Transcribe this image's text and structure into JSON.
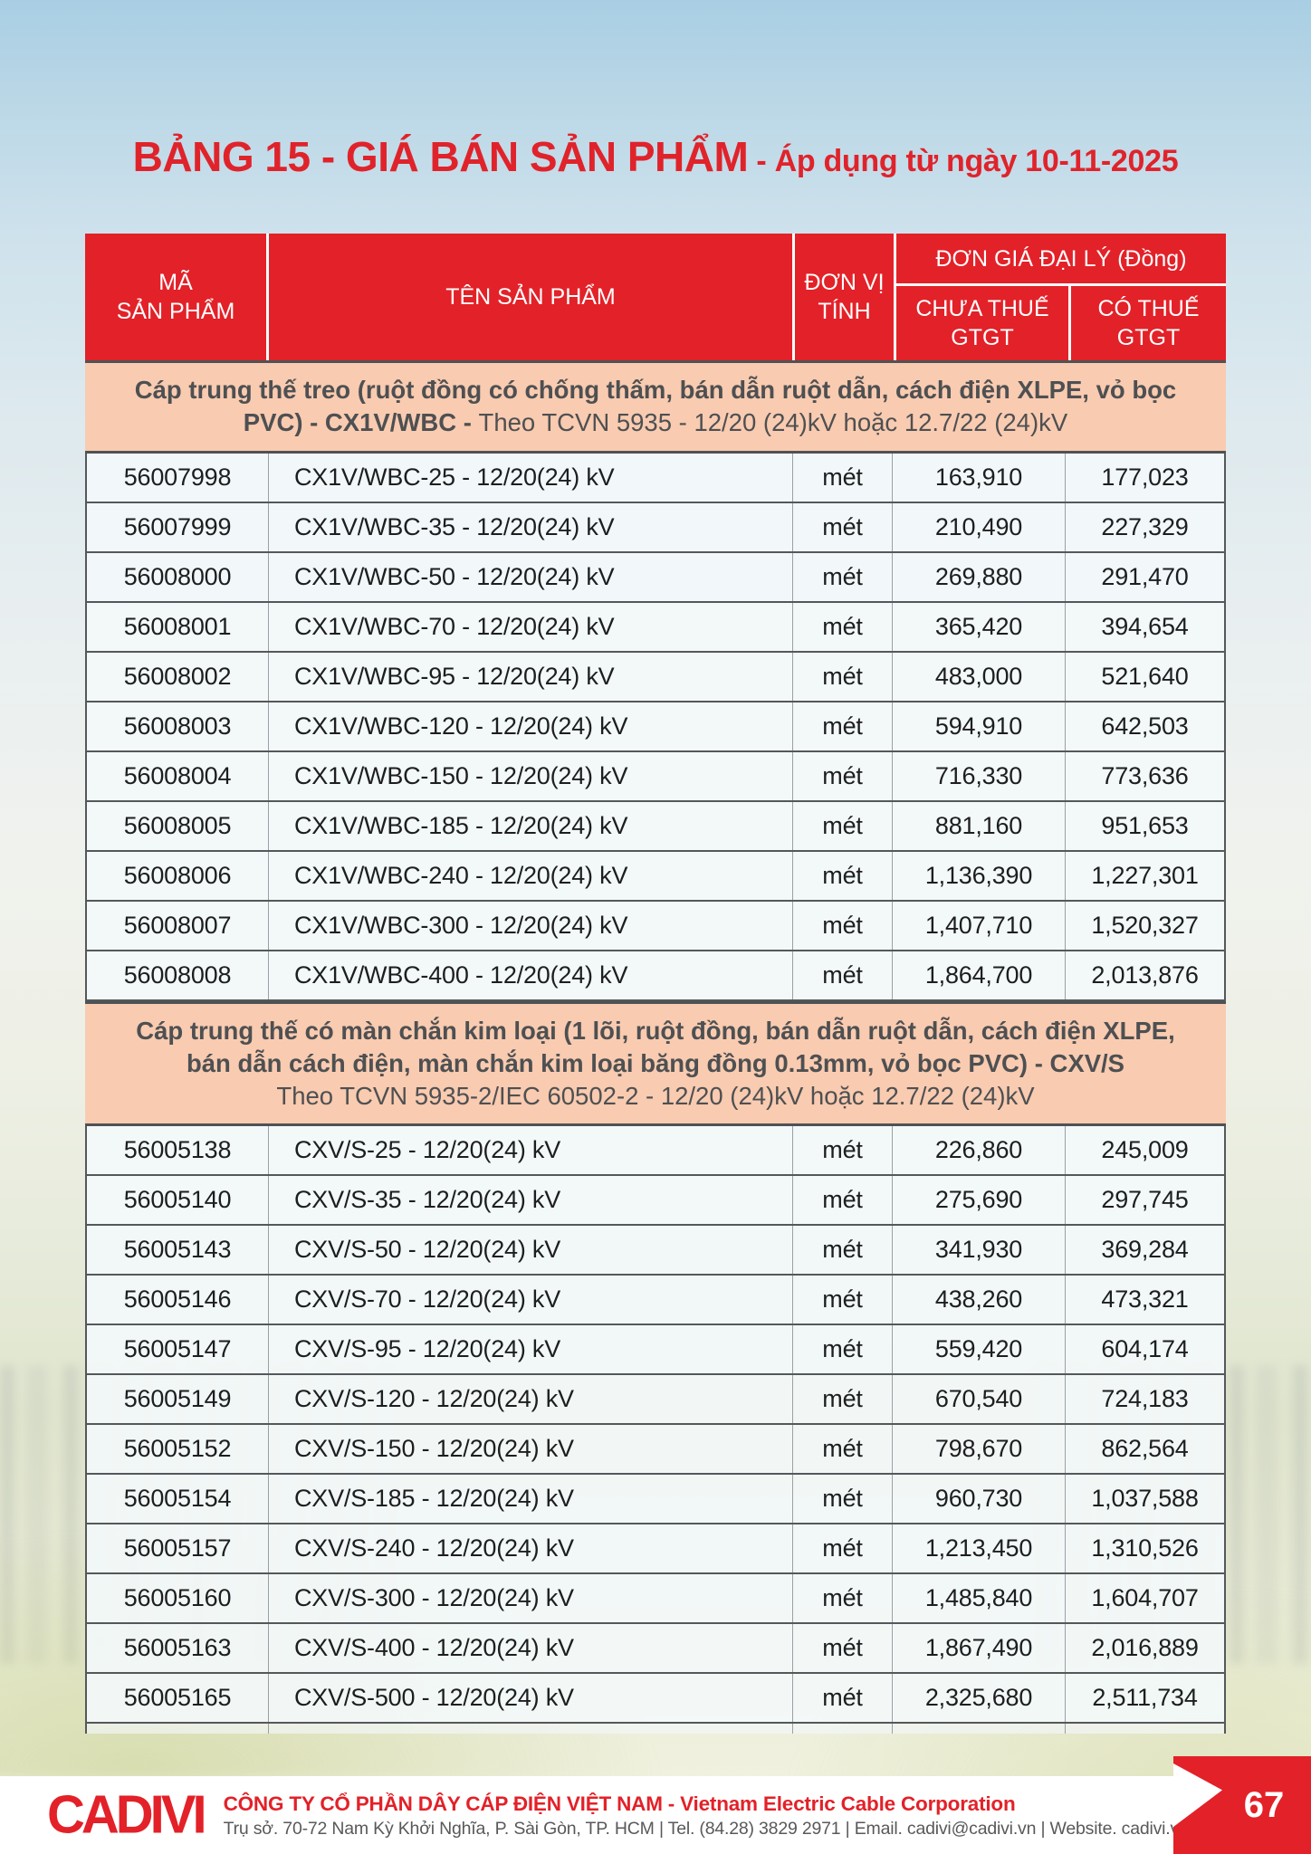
{
  "title": {
    "main": "BẢNG 15 - GIÁ BÁN SẢN PHẨM",
    "suffix": " - Áp dụng từ ngày 10-11-2025"
  },
  "table": {
    "headers": {
      "code": "MÃ\nSẢN PHẨM",
      "name": "TÊN SẢN PHẨM",
      "unit": "ĐƠN VỊ\nTÍNH",
      "price_group": "ĐƠN GIÁ ĐẠI LÝ (Đồng)",
      "price_ex": "CHƯA THUẾ\nGTGT",
      "price_inc": "CÓ THUẾ\nGTGT"
    },
    "sections": [
      {
        "heading_bold": "Cáp trung thế treo (ruột đồng có chống thấm, bán dẫn ruột dẫn, cách điện XLPE, vỏ bọc PVC) - CX1V/WBC -",
        "heading_normal": "Theo TCVN 5935 - 12/20 (24)kV hoặc 12.7/22 (24)kV",
        "rows": [
          {
            "code": "56007998",
            "name": "CX1V/WBC-25 - 12/20(24) kV",
            "unit": "mét",
            "price_ex": "163,910",
            "price_inc": "177,023"
          },
          {
            "code": "56007999",
            "name": "CX1V/WBC-35 - 12/20(24) kV",
            "unit": "mét",
            "price_ex": "210,490",
            "price_inc": "227,329"
          },
          {
            "code": "56008000",
            "name": "CX1V/WBC-50 - 12/20(24) kV",
            "unit": "mét",
            "price_ex": "269,880",
            "price_inc": "291,470"
          },
          {
            "code": "56008001",
            "name": "CX1V/WBC-70 - 12/20(24) kV",
            "unit": "mét",
            "price_ex": "365,420",
            "price_inc": "394,654"
          },
          {
            "code": "56008002",
            "name": "CX1V/WBC-95 - 12/20(24) kV",
            "unit": "mét",
            "price_ex": "483,000",
            "price_inc": "521,640"
          },
          {
            "code": "56008003",
            "name": "CX1V/WBC-120 - 12/20(24) kV",
            "unit": "mét",
            "price_ex": "594,910",
            "price_inc": "642,503"
          },
          {
            "code": "56008004",
            "name": "CX1V/WBC-150 - 12/20(24) kV",
            "unit": "mét",
            "price_ex": "716,330",
            "price_inc": "773,636"
          },
          {
            "code": "56008005",
            "name": "CX1V/WBC-185 - 12/20(24) kV",
            "unit": "mét",
            "price_ex": "881,160",
            "price_inc": "951,653"
          },
          {
            "code": "56008006",
            "name": "CX1V/WBC-240 - 12/20(24) kV",
            "unit": "mét",
            "price_ex": "1,136,390",
            "price_inc": "1,227,301"
          },
          {
            "code": "56008007",
            "name": "CX1V/WBC-300 - 12/20(24) kV",
            "unit": "mét",
            "price_ex": "1,407,710",
            "price_inc": "1,520,327"
          },
          {
            "code": "56008008",
            "name": "CX1V/WBC-400 - 12/20(24) kV",
            "unit": "mét",
            "price_ex": "1,864,700",
            "price_inc": "2,013,876"
          }
        ]
      },
      {
        "heading_bold": "Cáp trung thế có màn chắn kim loại (1 lõi, ruột đồng, bán dẫn ruột dẫn, cách điện XLPE, bán dẫn cách điện, màn chắn kim loại băng đồng 0.13mm, vỏ bọc PVC) - CXV/S",
        "heading_normal": "Theo TCVN 5935-2/IEC 60502-2 - 12/20 (24)kV hoặc 12.7/22 (24)kV",
        "rows": [
          {
            "code": "56005138",
            "name": "CXV/S-25 - 12/20(24) kV",
            "unit": "mét",
            "price_ex": "226,860",
            "price_inc": "245,009"
          },
          {
            "code": "56005140",
            "name": "CXV/S-35 - 12/20(24) kV",
            "unit": "mét",
            "price_ex": "275,690",
            "price_inc": "297,745"
          },
          {
            "code": "56005143",
            "name": "CXV/S-50 - 12/20(24) kV",
            "unit": "mét",
            "price_ex": "341,930",
            "price_inc": "369,284"
          },
          {
            "code": "56005146",
            "name": "CXV/S-70 - 12/20(24) kV",
            "unit": "mét",
            "price_ex": "438,260",
            "price_inc": "473,321"
          },
          {
            "code": "56005147",
            "name": "CXV/S-95 - 12/20(24) kV",
            "unit": "mét",
            "price_ex": "559,420",
            "price_inc": "604,174"
          },
          {
            "code": "56005149",
            "name": "CXV/S-120 - 12/20(24) kV",
            "unit": "mét",
            "price_ex": "670,540",
            "price_inc": "724,183"
          },
          {
            "code": "56005152",
            "name": "CXV/S-150 - 12/20(24) kV",
            "unit": "mét",
            "price_ex": "798,670",
            "price_inc": "862,564"
          },
          {
            "code": "56005154",
            "name": "CXV/S-185 - 12/20(24) kV",
            "unit": "mét",
            "price_ex": "960,730",
            "price_inc": "1,037,588"
          },
          {
            "code": "56005157",
            "name": "CXV/S-240 - 12/20(24) kV",
            "unit": "mét",
            "price_ex": "1,213,450",
            "price_inc": "1,310,526"
          },
          {
            "code": "56005160",
            "name": "CXV/S-300 - 12/20(24) kV",
            "unit": "mét",
            "price_ex": "1,485,840",
            "price_inc": "1,604,707"
          },
          {
            "code": "56005163",
            "name": "CXV/S-400 - 12/20(24) kV",
            "unit": "mét",
            "price_ex": "1,867,490",
            "price_inc": "2,016,889"
          },
          {
            "code": "56005165",
            "name": "CXV/S-500 - 12/20(24) kV",
            "unit": "mét",
            "price_ex": "2,325,680",
            "price_inc": "2,511,734"
          }
        ]
      }
    ]
  },
  "footer": {
    "logo": "CADIVI",
    "company": "CÔNG TY CỔ PHẦN DÂY CÁP ĐIỆN VIỆT NAM - Vietnam Electric Cable Corporation",
    "address": "Trụ sở. 70-72 Nam Kỳ Khởi Nghĩa, P. Sài Gòn, TP. HCM | Tel. (84.28) 3829 2971 | Email. cadivi@cadivi.vn | Website. cadivi.vn",
    "page_number": "67"
  },
  "colors": {
    "accent_red": "#e32128",
    "section_band": "#f9cbb0"
  }
}
